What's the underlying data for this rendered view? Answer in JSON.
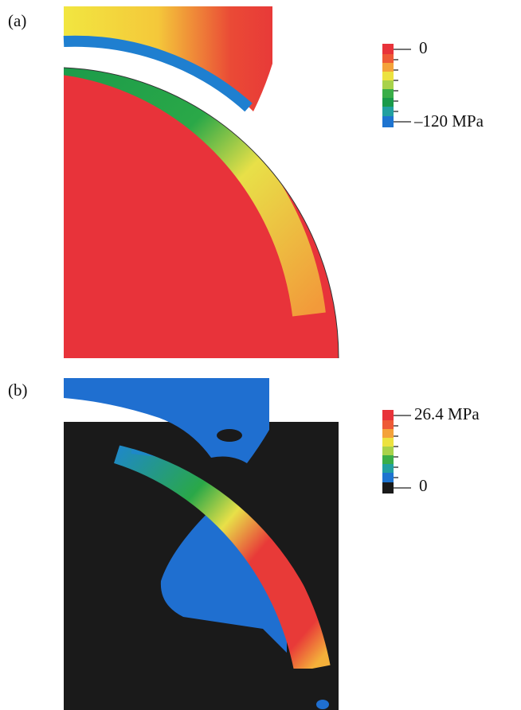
{
  "panels": [
    {
      "label": "(a)",
      "scale_max": "0",
      "scale_min": "–120 MPa"
    },
    {
      "label": "(b)",
      "scale_max": "26.4 MPa",
      "scale_min": "0"
    }
  ]
}
